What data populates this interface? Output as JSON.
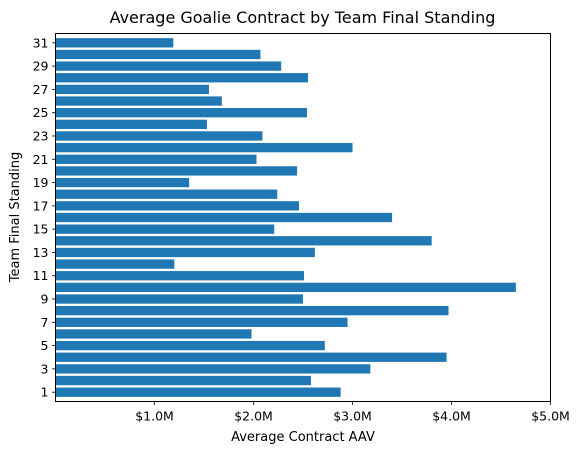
{
  "chart_data": {
    "type": "bar",
    "orientation": "horizontal",
    "title": "Average Goalie Contract by Team Final Standing",
    "xlabel": "Average Contract AAV",
    "ylabel": "Team Final Standing",
    "xlim": [
      0,
      5000000
    ],
    "x_ticks": [
      1000000,
      2000000,
      3000000,
      4000000,
      5000000
    ],
    "x_tick_labels": [
      "$1.0M",
      "$2.0M",
      "$3.0M",
      "$4.0M",
      "$5.0M"
    ],
    "y_ticks": [
      1,
      3,
      5,
      7,
      9,
      11,
      13,
      15,
      17,
      19,
      21,
      23,
      25,
      27,
      29,
      31
    ],
    "y_tick_labels": [
      "1",
      "3",
      "5",
      "7",
      "9",
      "11",
      "13",
      "15",
      "17",
      "19",
      "21",
      "23",
      "25",
      "27",
      "29",
      "31"
    ],
    "color": "#1f77b4",
    "categories": [
      1,
      2,
      3,
      4,
      5,
      6,
      7,
      8,
      9,
      10,
      11,
      12,
      13,
      14,
      15,
      16,
      17,
      18,
      19,
      20,
      21,
      22,
      23,
      24,
      25,
      26,
      27,
      28,
      29,
      30,
      31
    ],
    "values": [
      2880000,
      2580000,
      3180000,
      3950000,
      2720000,
      1980000,
      2950000,
      3970000,
      2500000,
      4650000,
      2510000,
      1200000,
      2620000,
      3800000,
      2210000,
      3400000,
      2460000,
      2240000,
      1350000,
      2440000,
      2030000,
      3000000,
      2090000,
      1530000,
      2540000,
      1680000,
      1550000,
      2550000,
      2280000,
      2070000,
      1190000
    ],
    "grid": false
  }
}
